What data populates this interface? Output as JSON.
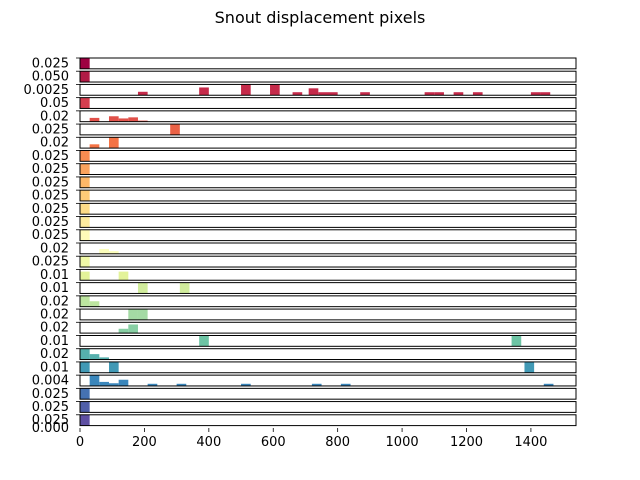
{
  "chart_data": {
    "type": "bar",
    "title": "Snout displacement pixels",
    "xlabel": "",
    "ylabel": "",
    "xlim": [
      0,
      1540
    ],
    "xticks": [
      "0",
      "200",
      "400",
      "600",
      "800",
      "1000",
      "1200",
      "1400"
    ],
    "bin_width": 30,
    "grid": false,
    "legend": "none",
    "subplots": [
      {
        "color": "#9e0142",
        "ytop": "0.025",
        "bars": [
          [
            0,
            0.025
          ]
        ]
      },
      {
        "color": "#b11b46",
        "ytop": "0.050",
        "bars": [
          [
            0,
            0.05
          ]
        ]
      },
      {
        "color": "#c52a4a",
        "ytop": "0.0025",
        "bars": [
          [
            180,
            0.0008
          ],
          [
            370,
            0.0018
          ],
          [
            500,
            0.0025
          ],
          [
            590,
            0.0025
          ],
          [
            660,
            0.0007
          ],
          [
            710,
            0.0016
          ],
          [
            740,
            0.0007
          ],
          [
            770,
            0.0007
          ],
          [
            870,
            0.0007
          ],
          [
            1070,
            0.0007
          ],
          [
            1100,
            0.0007
          ],
          [
            1160,
            0.0007
          ],
          [
            1220,
            0.0007
          ],
          [
            1400,
            0.0007
          ],
          [
            1430,
            0.0007
          ]
        ]
      },
      {
        "color": "#d53e4f",
        "ytop": "0.05",
        "bars": [
          [
            0,
            0.05
          ]
        ]
      },
      {
        "color": "#e1514a",
        "ytop": "0.02",
        "bars": [
          [
            30,
            0.007
          ],
          [
            90,
            0.01
          ],
          [
            120,
            0.006
          ],
          [
            150,
            0.008
          ],
          [
            180,
            0.002
          ]
        ]
      },
      {
        "color": "#ea6145",
        "ytop": "0.025",
        "bars": [
          [
            280,
            0.025
          ]
        ]
      },
      {
        "color": "#f47345",
        "ytop": "0.02",
        "bars": [
          [
            30,
            0.007
          ],
          [
            90,
            0.02
          ]
        ]
      },
      {
        "color": "#f88c51",
        "ytop": "0.025",
        "bars": [
          [
            0,
            0.025
          ]
        ]
      },
      {
        "color": "#fba35d",
        "ytop": "0.025",
        "bars": [
          [
            0,
            0.025
          ]
        ]
      },
      {
        "color": "#fdb768",
        "ytop": "0.025",
        "bars": [
          [
            0,
            0.025
          ]
        ]
      },
      {
        "color": "#fecb77",
        "ytop": "0.025",
        "bars": [
          [
            0,
            0.025
          ]
        ]
      },
      {
        "color": "#fedc87",
        "ytop": "0.025",
        "bars": [
          [
            0,
            0.025
          ]
        ]
      },
      {
        "color": "#feec9f",
        "ytop": "0.025",
        "bars": [
          [
            0,
            0.025
          ]
        ]
      },
      {
        "color": "#fffbb8",
        "ytop": "0.025",
        "bars": [
          [
            0,
            0.025
          ]
        ]
      },
      {
        "color": "#fbfdba",
        "ytop": "0.02",
        "bars": [
          [
            60,
            0.009
          ],
          [
            90,
            0.005
          ]
        ]
      },
      {
        "color": "#f0f9a7",
        "ytop": "0.025",
        "bars": [
          [
            0,
            0.025
          ]
        ]
      },
      {
        "color": "#e3f399",
        "ytop": "0.01",
        "bars": [
          [
            0,
            0.008
          ],
          [
            120,
            0.008
          ]
        ]
      },
      {
        "color": "#d1ec9c",
        "ytop": "0.01",
        "bars": [
          [
            180,
            0.01
          ],
          [
            310,
            0.01
          ]
        ]
      },
      {
        "color": "#bde5a0",
        "ytop": "0.02",
        "bars": [
          [
            0,
            0.02
          ],
          [
            30,
            0.01
          ]
        ]
      },
      {
        "color": "#a4daa4",
        "ytop": "0.02",
        "bars": [
          [
            150,
            0.02
          ],
          [
            180,
            0.02
          ]
        ]
      },
      {
        "color": "#88cfa4",
        "ytop": "0.02",
        "bars": [
          [
            120,
            0.008
          ],
          [
            150,
            0.016
          ]
        ]
      },
      {
        "color": "#6dc4a4",
        "ytop": "0.01",
        "bars": [
          [
            370,
            0.01
          ],
          [
            1340,
            0.01
          ]
        ]
      },
      {
        "color": "#56b0ad",
        "ytop": "0.02",
        "bars": [
          [
            0,
            0.02
          ],
          [
            30,
            0.01
          ],
          [
            60,
            0.004
          ]
        ]
      },
      {
        "color": "#4199b5",
        "ytop": "0.01",
        "bars": [
          [
            0,
            0.01
          ],
          [
            90,
            0.01
          ],
          [
            1380,
            0.01
          ]
        ]
      },
      {
        "color": "#3a86bb",
        "ytop": "0.004",
        "bars": [
          [
            30,
            0.004
          ],
          [
            60,
            0.0015
          ],
          [
            90,
            0.001
          ],
          [
            120,
            0.0023
          ],
          [
            210,
            0.0008
          ],
          [
            300,
            0.0008
          ],
          [
            500,
            0.0008
          ],
          [
            720,
            0.0008
          ],
          [
            810,
            0.0008
          ],
          [
            1440,
            0.0008
          ]
        ]
      },
      {
        "color": "#4572b2",
        "ytop": "0.025",
        "bars": [
          [
            0,
            0.025
          ]
        ]
      },
      {
        "color": "#505fa9",
        "ytop": "0.025",
        "bars": [
          [
            0,
            0.025
          ]
        ]
      },
      {
        "color": "#5e4fa2",
        "ytop": "0.025",
        "bars": [
          [
            0,
            0.025
          ]
        ]
      }
    ]
  }
}
